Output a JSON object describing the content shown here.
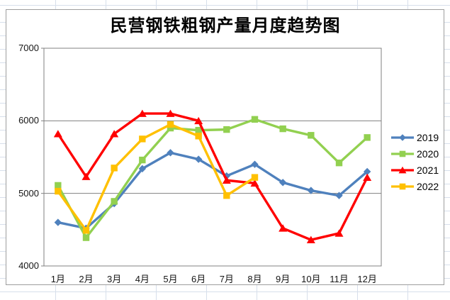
{
  "chart_data": {
    "type": "line",
    "title": "民营钢铁粗钢产量月度趋势图",
    "categories": [
      "1月",
      "2月",
      "3月",
      "4月",
      "5月",
      "6月",
      "7月",
      "8月",
      "9月",
      "10月",
      "11月",
      "12月"
    ],
    "series": [
      {
        "name": "2019",
        "color": "#4F81BD",
        "marker": "diamond",
        "values": [
          4600,
          4520,
          4860,
          5340,
          5560,
          5470,
          5240,
          5400,
          5150,
          5040,
          4970,
          5300
        ]
      },
      {
        "name": "2020",
        "color": "#92D050",
        "marker": "square",
        "values": [
          5110,
          4390,
          4890,
          5460,
          5900,
          5870,
          5880,
          6020,
          5890,
          5800,
          5420,
          5770
        ]
      },
      {
        "name": "2021",
        "color": "#FF0000",
        "marker": "triangle",
        "values": [
          5820,
          5230,
          5820,
          6100,
          6100,
          6000,
          5180,
          5140,
          4520,
          4360,
          4450,
          5220
        ]
      },
      {
        "name": "2022",
        "color": "#FFC000",
        "marker": "square",
        "values": [
          5030,
          4490,
          5350,
          5750,
          5950,
          5790,
          4970,
          5220,
          null,
          null,
          null,
          null
        ]
      }
    ],
    "ylim": [
      4000,
      7000
    ],
    "yticks": [
      7000,
      6000,
      5000,
      4000
    ],
    "grid": true,
    "legend_position": "right",
    "colors": {
      "gridline": "#808080",
      "plot_border": "#808080",
      "chart_border": "#9e9e9e",
      "tick_text": "#151515",
      "title_text": "#000000"
    }
  }
}
